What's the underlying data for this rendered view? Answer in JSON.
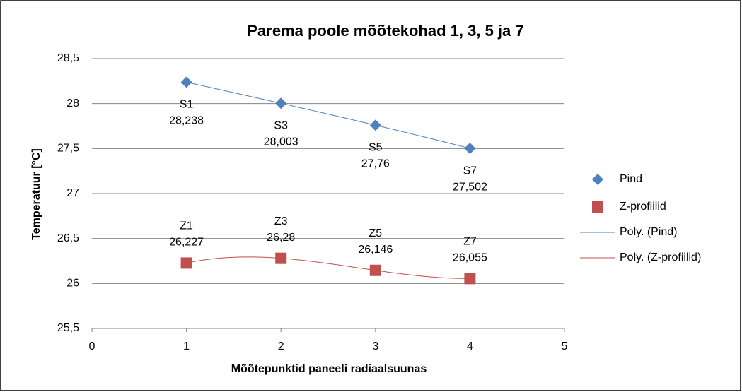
{
  "chart_data": {
    "type": "scatter",
    "title": "Parema poole mõõtekohad 1, 3, 5 ja 7",
    "xlabel": "Mõõtepunktid paneeli radiaalsuunas",
    "ylabel": "Temperatuur [°C]",
    "xlim": [
      0,
      5
    ],
    "xticks": [
      0,
      1,
      2,
      3,
      4,
      5
    ],
    "ylim": [
      25.5,
      28.5
    ],
    "yticks": [
      {
        "value": 25.5,
        "label": "25,5"
      },
      26,
      {
        "value": 26.5,
        "label": "26,5"
      },
      27,
      {
        "value": 27.5,
        "label": "27,5"
      },
      28,
      {
        "value": 28.5,
        "label": "28,5"
      }
    ],
    "grid": true,
    "legend": "right",
    "series": [
      {
        "name": "Pind",
        "color": "#4f81bd",
        "marker": "diamond",
        "label_side": "below",
        "x": [
          1,
          2,
          3,
          4
        ],
        "values": [
          28.238,
          28.003,
          27.76,
          27.502
        ],
        "point_labels": [
          "S1",
          "S3",
          "S5",
          "S7"
        ],
        "value_labels": [
          "28,238",
          "28,003",
          "27,76",
          "27,502"
        ]
      },
      {
        "name": "Z-profiilid",
        "color": "#c0504d",
        "marker": "square",
        "label_side": "above",
        "x": [
          1,
          2,
          3,
          4
        ],
        "values": [
          26.227,
          26.28,
          26.146,
          26.055
        ],
        "point_labels": [
          "Z1",
          "Z3",
          "Z5",
          "Z7"
        ],
        "value_labels": [
          "26,227",
          "26,28",
          "26,146",
          "26,055"
        ]
      }
    ],
    "trendlines": [
      {
        "name": "Poly. (Pind)",
        "color": "#4f81bd"
      },
      {
        "name": "Poly. (Z-profiilid)",
        "color": "#c0504d"
      }
    ]
  }
}
